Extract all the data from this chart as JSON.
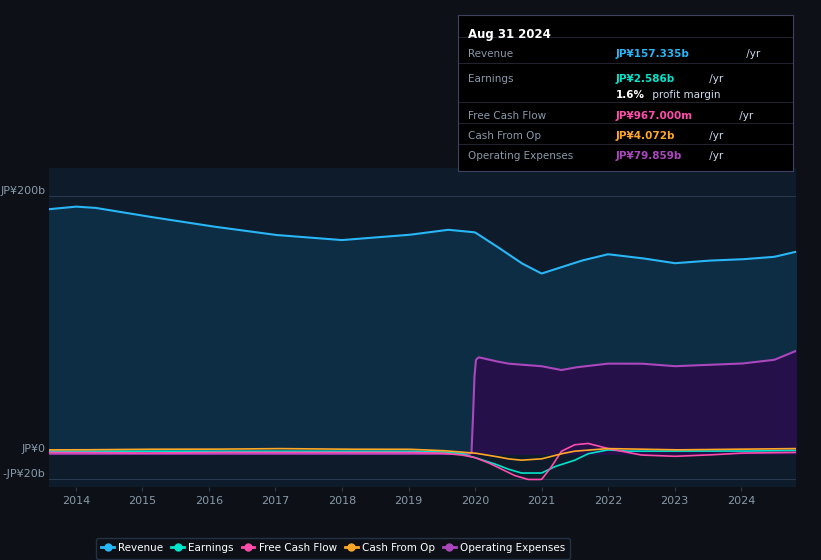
{
  "bg_color": "#0d1117",
  "plot_bg_color": "#0d1b2a",
  "ylabel_top": "JP¥200b",
  "ylabel_zero": "JP¥0",
  "ylabel_neg": "-JP¥20b",
  "revenue_color": "#29b6f6",
  "earnings_color": "#00e5cc",
  "fcf_color": "#ff4dab",
  "cfop_color": "#ffa726",
  "opex_color": "#ab47bc",
  "revenue_fill": "#0d2d45",
  "opex_fill": "#25104a",
  "info_box": {
    "date": "Aug 31 2024",
    "revenue_label": "Revenue",
    "revenue_val": "JP¥157.335b",
    "revenue_unit": " /yr",
    "revenue_color": "#29b6f6",
    "earnings_label": "Earnings",
    "earnings_val": "JP¥2.586b",
    "earnings_unit": " /yr",
    "earnings_color": "#00e5cc",
    "margin_pct": "1.6%",
    "margin_suffix": " profit margin",
    "fcf_label": "Free Cash Flow",
    "fcf_val": "JP¥967.000m",
    "fcf_unit": " /yr",
    "fcf_color": "#ff4dab",
    "cfop_label": "Cash From Op",
    "cfop_val": "JP¥4.072b",
    "cfop_unit": " /yr",
    "cfop_color": "#ffa726",
    "opex_label": "Operating Expenses",
    "opex_val": "JP¥79.859b",
    "opex_unit": " /yr",
    "opex_color": "#ab47bc"
  },
  "legend": [
    {
      "label": "Revenue",
      "color": "#29b6f6"
    },
    {
      "label": "Earnings",
      "color": "#00e5cc"
    },
    {
      "label": "Free Cash Flow",
      "color": "#ff4dab"
    },
    {
      "label": "Cash From Op",
      "color": "#ffa726"
    },
    {
      "label": "Operating Expenses",
      "color": "#ab47bc"
    }
  ],
  "xticks": [
    2014,
    2015,
    2016,
    2017,
    2018,
    2019,
    2020,
    2021,
    2022,
    2023,
    2024
  ]
}
